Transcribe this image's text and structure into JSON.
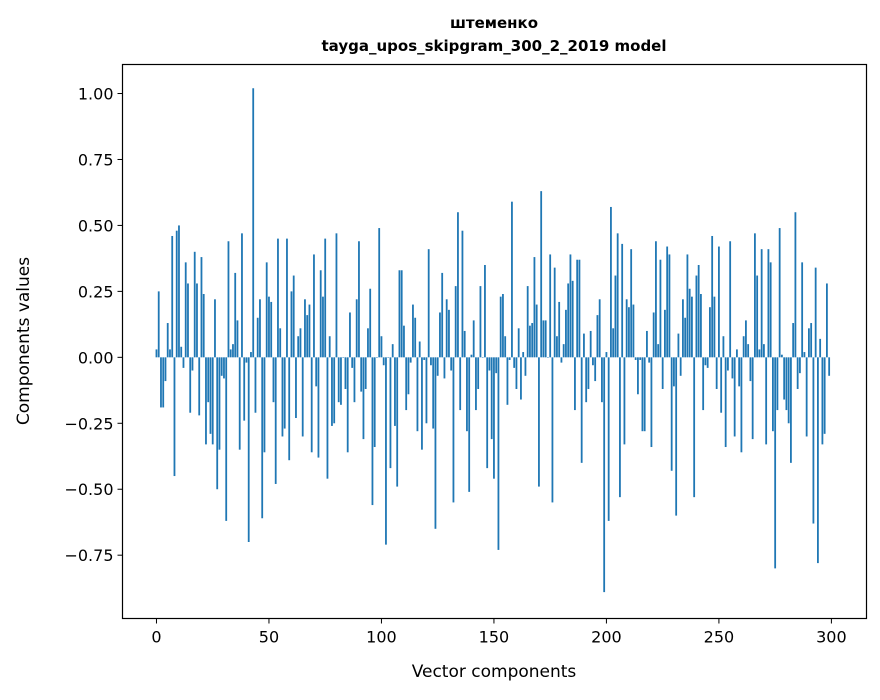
{
  "chart_data": {
    "type": "bar",
    "title": "штеменко",
    "subtitle": "tayga_upos_skipgram_300_2_2019 model",
    "xlabel": "Vector components",
    "ylabel": "Components values",
    "xlim": [
      -15.1,
      315.6
    ],
    "ylim": [
      -0.99,
      1.11
    ],
    "xticks": [
      0,
      50,
      100,
      150,
      200,
      250,
      300
    ],
    "xtick_labels": [
      "0",
      "50",
      "100",
      "150",
      "200",
      "250",
      "300"
    ],
    "yticks": [
      -0.75,
      -0.5,
      -0.25,
      0,
      0.25,
      0.5,
      0.75,
      1.0
    ],
    "ytick_labels": [
      "−0.75",
      "−0.50",
      "−0.25",
      "0.00",
      "0.25",
      "0.50",
      "0.75",
      "1.00"
    ],
    "grid": false,
    "bar_color": "#1f77b4",
    "values": [
      0.03,
      0.25,
      -0.19,
      -0.19,
      -0.09,
      0.13,
      0.03,
      0.46,
      -0.45,
      0.48,
      0.5,
      0.04,
      -0.04,
      0.36,
      0.28,
      -0.21,
      -0.05,
      0.4,
      0.28,
      -0.22,
      0.38,
      0.24,
      -0.33,
      -0.17,
      -0.29,
      -0.33,
      0.22,
      -0.5,
      -0.35,
      -0.07,
      -0.08,
      -0.62,
      0.44,
      0.03,
      0.05,
      0.32,
      0.14,
      -0.35,
      0.47,
      -0.24,
      -0.02,
      -0.7,
      0.02,
      1.02,
      -0.21,
      0.15,
      0.22,
      -0.61,
      -0.36,
      0.36,
      0.23,
      0.21,
      -0.17,
      -0.48,
      0.45,
      0.11,
      -0.3,
      -0.27,
      0.45,
      -0.39,
      0.25,
      0.31,
      -0.23,
      0.08,
      0.11,
      -0.3,
      0.22,
      0.16,
      0.2,
      -0.36,
      0.39,
      -0.11,
      -0.38,
      0.33,
      0.23,
      0.45,
      -0.46,
      0.08,
      -0.26,
      -0.25,
      0.47,
      -0.17,
      -0.18,
      0.0,
      -0.12,
      -0.36,
      0.17,
      -0.04,
      -0.17,
      0.22,
      0.44,
      -0.13,
      -0.31,
      -0.12,
      0.11,
      0.26,
      -0.56,
      -0.34,
      0.0,
      0.49,
      0.08,
      -0.03,
      -0.71,
      0.0,
      -0.42,
      0.05,
      -0.26,
      -0.49,
      0.33,
      0.33,
      0.12,
      -0.2,
      -0.14,
      -0.02,
      0.2,
      0.15,
      -0.28,
      0.06,
      -0.35,
      -0.01,
      -0.25,
      0.41,
      -0.03,
      -0.27,
      -0.65,
      -0.07,
      0.17,
      0.32,
      -0.08,
      0.22,
      0.18,
      -0.05,
      -0.55,
      0.27,
      0.55,
      -0.2,
      0.48,
      0.1,
      -0.28,
      -0.51,
      0.01,
      0.14,
      -0.2,
      -0.12,
      0.27,
      0.0,
      0.35,
      -0.42,
      -0.05,
      -0.31,
      -0.46,
      -0.06,
      -0.73,
      0.23,
      0.24,
      0.08,
      -0.18,
      -0.01,
      0.59,
      -0.04,
      -0.12,
      0.11,
      -0.16,
      0.02,
      -0.07,
      0.27,
      0.12,
      0.13,
      0.38,
      0.2,
      -0.49,
      0.63,
      0.14,
      0.14,
      0.0,
      0.39,
      -0.55,
      0.34,
      0.08,
      0.21,
      -0.02,
      0.05,
      0.18,
      0.28,
      0.39,
      0.29,
      -0.2,
      0.37,
      0.37,
      -0.4,
      0.09,
      -0.17,
      -0.12,
      0.1,
      -0.03,
      -0.09,
      0.16,
      0.22,
      -0.17,
      -0.89,
      0.02,
      -0.62,
      0.57,
      0.11,
      0.31,
      0.47,
      -0.53,
      0.43,
      -0.33,
      0.22,
      0.19,
      0.41,
      0.2,
      -0.01,
      -0.14,
      -0.01,
      -0.28,
      -0.28,
      0.1,
      -0.02,
      -0.34,
      0.17,
      0.44,
      0.05,
      0.37,
      -0.12,
      0.18,
      0.42,
      0.39,
      -0.43,
      -0.11,
      -0.6,
      0.09,
      -0.07,
      0.22,
      0.15,
      0.39,
      0.26,
      0.23,
      -0.53,
      0.31,
      0.35,
      0.24,
      -0.2,
      -0.03,
      -0.04,
      0.19,
      0.46,
      0.23,
      -0.12,
      0.42,
      -0.21,
      0.08,
      -0.34,
      -0.05,
      0.44,
      -0.08,
      -0.3,
      0.03,
      -0.11,
      -0.36,
      0.08,
      0.14,
      0.05,
      -0.09,
      -0.31,
      0.47,
      0.31,
      0.03,
      0.41,
      0.05,
      -0.33,
      0.41,
      0.36,
      -0.28,
      -0.8,
      -0.2,
      0.49,
      0.01,
      -0.16,
      -0.2,
      -0.25,
      -0.4,
      0.13,
      0.55,
      -0.12,
      -0.06,
      0.36,
      0.02,
      -0.3,
      0.11,
      0.13,
      -0.63,
      0.34,
      -0.78,
      0.07,
      -0.33,
      -0.29,
      0.28,
      -0.07
    ]
  }
}
